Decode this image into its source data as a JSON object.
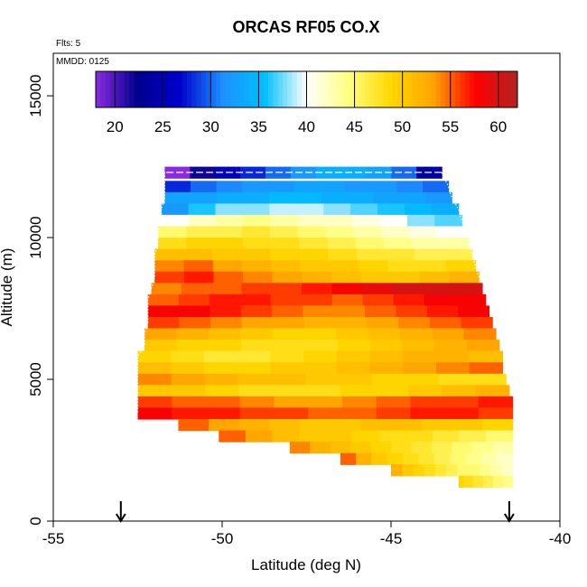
{
  "chart_data": {
    "type": "heatmap",
    "title": "ORCAS RF05 CO.X",
    "annotations": {
      "flights": "Flts: 5",
      "date": "MMDD: 0125"
    },
    "xlabel": "Latitude (deg N)",
    "ylabel": "Altitude (m)",
    "xlim": [
      -55,
      -40
    ],
    "ylim": [
      0,
      16500
    ],
    "x_ticks": [
      -55,
      -50,
      -45,
      -40
    ],
    "x_tick_labels": [
      "-55",
      "-50",
      "-45",
      "-40"
    ],
    "y_ticks": [
      0,
      5000,
      10000,
      15000
    ],
    "y_tick_labels": [
      "0",
      "5000",
      "10000",
      "15000"
    ],
    "colorbar": {
      "range": [
        18,
        62
      ],
      "ticks": [
        20,
        25,
        30,
        35,
        40,
        45,
        50,
        55,
        60
      ],
      "tick_labels": [
        "20",
        "25",
        "30",
        "35",
        "40",
        "45",
        "50",
        "55",
        "60"
      ],
      "colors": [
        "#8a2be2",
        "#00008b",
        "#0000cd",
        "#1e90ff",
        "#00bfff",
        "#ffffff",
        "#ffff80",
        "#ffd700",
        "#ffa500",
        "#ff0000",
        "#b22222"
      ]
    },
    "arrows_at_latitude": [
      -53,
      -41.5
    ],
    "altitude_bands": [
      {
        "alt": 12300,
        "lat_min": -51.7,
        "lat_max": -43.5,
        "values": [
          18,
          22,
          26,
          28,
          30,
          32,
          34,
          34,
          33,
          30,
          24
        ]
      },
      {
        "alt": 11800,
        "lat_min": -51.7,
        "lat_max": -43.3,
        "values": [
          28,
          30,
          31,
          32,
          32,
          33,
          33,
          32,
          32,
          31,
          30
        ]
      },
      {
        "alt": 11400,
        "lat_min": -51.7,
        "lat_max": -43.2,
        "values": [
          33,
          33,
          34,
          34,
          35,
          35,
          34,
          34,
          33,
          33,
          32
        ]
      },
      {
        "alt": 11000,
        "lat_min": -51.8,
        "lat_max": -43.0,
        "values": [
          32,
          36,
          38,
          38,
          39,
          39,
          38,
          37,
          36,
          35,
          34
        ]
      },
      {
        "alt": 10600,
        "lat_min": -51.8,
        "lat_max": -42.9,
        "values": [
          40,
          42,
          43,
          44,
          43,
          42,
          42,
          41,
          40,
          38,
          37
        ]
      },
      {
        "alt": 10200,
        "lat_min": -51.9,
        "lat_max": -42.8,
        "values": [
          45,
          46,
          46,
          47,
          46,
          45,
          44,
          43,
          42,
          41,
          40
        ]
      },
      {
        "alt": 9800,
        "lat_min": -51.9,
        "lat_max": -42.7,
        "values": [
          48,
          49,
          49,
          48,
          48,
          47,
          46,
          45,
          44,
          43,
          43
        ]
      },
      {
        "alt": 9400,
        "lat_min": -52.0,
        "lat_max": -42.6,
        "values": [
          51,
          51,
          50,
          50,
          49,
          49,
          48,
          47,
          47,
          46,
          46
        ]
      },
      {
        "alt": 9000,
        "lat_min": -52.0,
        "lat_max": -42.5,
        "values": [
          54,
          55,
          53,
          52,
          51,
          50,
          50,
          49,
          48,
          48,
          49
        ]
      },
      {
        "alt": 8600,
        "lat_min": -52.0,
        "lat_max": -42.4,
        "values": [
          56,
          57,
          55,
          54,
          53,
          52,
          51,
          50,
          50,
          51,
          52
        ]
      },
      {
        "alt": 8200,
        "lat_min": -52.1,
        "lat_max": -42.3,
        "values": [
          54,
          55,
          55,
          56,
          56,
          57,
          58,
          59,
          60,
          60,
          60
        ]
      },
      {
        "alt": 7800,
        "lat_min": -52.2,
        "lat_max": -42.2,
        "values": [
          55,
          56,
          57,
          57,
          56,
          56,
          55,
          56,
          57,
          58,
          58
        ]
      },
      {
        "alt": 7400,
        "lat_min": -52.2,
        "lat_max": -42.1,
        "values": [
          58,
          58,
          57,
          56,
          55,
          54,
          54,
          55,
          56,
          57,
          58
        ]
      },
      {
        "alt": 7000,
        "lat_min": -52.2,
        "lat_max": -42.0,
        "values": [
          56,
          55,
          54,
          53,
          53,
          52,
          52,
          53,
          54,
          55,
          56
        ]
      },
      {
        "alt": 6600,
        "lat_min": -52.3,
        "lat_max": -41.9,
        "values": [
          53,
          52,
          51,
          50,
          49,
          49,
          50,
          51,
          52,
          53,
          54
        ]
      },
      {
        "alt": 6200,
        "lat_min": -52.3,
        "lat_max": -41.8,
        "values": [
          50,
          49,
          49,
          48,
          48,
          48,
          49,
          50,
          51,
          52,
          53
        ]
      },
      {
        "alt": 5800,
        "lat_min": -52.5,
        "lat_max": -41.7,
        "values": [
          49,
          48,
          47,
          47,
          48,
          49,
          50,
          51,
          52,
          52,
          51
        ]
      },
      {
        "alt": 5400,
        "lat_min": -52.5,
        "lat_max": -41.7,
        "values": [
          51,
          50,
          49,
          49,
          50,
          50,
          51,
          52,
          53,
          54,
          55
        ]
      },
      {
        "alt": 5000,
        "lat_min": -52.5,
        "lat_max": -41.6,
        "values": [
          54,
          53,
          52,
          51,
          51,
          50,
          50,
          49,
          49,
          48,
          48
        ]
      },
      {
        "alt": 4600,
        "lat_min": -52.5,
        "lat_max": -41.5,
        "values": [
          50,
          50,
          49,
          48,
          48,
          48,
          49,
          49,
          50,
          51,
          52
        ]
      },
      {
        "alt": 4200,
        "lat_min": -52.5,
        "lat_max": -41.4,
        "values": [
          56,
          55,
          55,
          54,
          53,
          53,
          54,
          55,
          56,
          56,
          57
        ]
      },
      {
        "alt": 3800,
        "lat_min": -52.5,
        "lat_max": -41.4,
        "values": [
          58,
          57,
          57,
          56,
          56,
          55,
          55,
          56,
          57,
          57,
          56
        ]
      },
      {
        "alt": 3400,
        "lat_min": -51.3,
        "lat_max": -41.4,
        "values": [
          55,
          53,
          52,
          51,
          50,
          50,
          51,
          51,
          50,
          50,
          49
        ]
      },
      {
        "alt": 3000,
        "lat_min": -50.1,
        "lat_max": -41.4,
        "values": [
          55,
          53,
          51,
          50,
          50,
          49,
          48,
          48,
          47,
          46,
          45
        ]
      },
      {
        "alt": 2600,
        "lat_min": -48.0,
        "lat_max": -41.4,
        "values": [
          54,
          52,
          51,
          50,
          49,
          48,
          47,
          46,
          45,
          44,
          43
        ]
      },
      {
        "alt": 2200,
        "lat_min": -46.5,
        "lat_max": -41.4,
        "values": [
          55,
          52,
          50,
          49,
          48,
          47,
          46,
          45,
          44,
          43,
          42
        ]
      },
      {
        "alt": 1800,
        "lat_min": -45.0,
        "lat_max": -41.4,
        "values": [
          52,
          50,
          49,
          48,
          47,
          46,
          45,
          45,
          44,
          43,
          42
        ]
      },
      {
        "alt": 1400,
        "lat_min": -43.0,
        "lat_max": -41.4,
        "values": [
          49,
          48,
          48,
          47,
          47,
          46,
          46,
          45,
          45,
          44,
          44
        ]
      }
    ]
  }
}
